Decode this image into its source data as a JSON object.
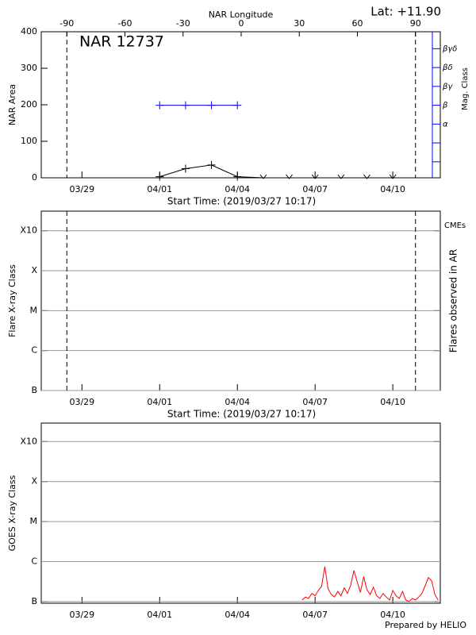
{
  "chart_data": [
    {
      "type": "line",
      "title": "NAR 12737",
      "subtitle": "Lat: +11.90",
      "x2label": "NAR Longitude",
      "xlabel": "Start Time: (2019/03/27 10:17)",
      "ylabel": "NAR Area",
      "y2label": "Mag. Class",
      "y2color": "#0000ff",
      "xlim": [
        "03/27 10:17",
        "04/11 20:00"
      ],
      "xticks": [
        "03/29",
        "04/01",
        "04/04",
        "04/07",
        "04/10"
      ],
      "x2ticks": [
        -90,
        -60,
        -30,
        0,
        30,
        60,
        90
      ],
      "limb_x": [
        "03/28 10:00",
        "04/10 21:00"
      ],
      "ylim": [
        0,
        400
      ],
      "yticks": [
        0,
        100,
        200,
        300,
        400
      ],
      "y2lim": [
        0.15,
        7.9
      ],
      "y2minor": [
        1,
        2
      ],
      "y2ticks": [
        {
          "value": 3,
          "label": "α"
        },
        {
          "value": 4,
          "label": "β"
        },
        {
          "value": 5,
          "label": "βγ"
        },
        {
          "value": 6,
          "label": "βδ"
        },
        {
          "value": 7,
          "label": "βγδ"
        }
      ],
      "series": [
        {
          "color": "#000000",
          "x": [
            "04/01",
            "04/02",
            "04/03",
            "04/04",
            "04/05",
            "04/06",
            "04/07",
            "04/08",
            "04/09",
            "04/10"
          ],
          "values": [
            3,
            25,
            35,
            3,
            0,
            0,
            0,
            0,
            0,
            0
          ]
        },
        {
          "color": "#0000ff",
          "axis": "y2",
          "x": [
            "04/01",
            "04/02",
            "04/03",
            "04/04"
          ],
          "values": [
            4,
            4,
            4,
            4
          ]
        }
      ]
    },
    {
      "type": "line",
      "xlabel": "Start Time: (2019/03/27 10:17)",
      "ylabel": "Flare X-ray Class",
      "y2label": "Flares observed in AR",
      "annotation": "CMEs",
      "annotation_color": "#ff0000",
      "xlim": [
        "03/27 10:17",
        "04/11 20:00"
      ],
      "xticks": [
        "03/29",
        "04/01",
        "04/04",
        "04/07",
        "04/10"
      ],
      "limb_x": [
        "03/28 10:00",
        "04/10 21:00"
      ],
      "log": true,
      "grid": true,
      "ylim": [
        1e-07,
        0.0031
      ],
      "yticks": [
        {
          "value": 1e-07,
          "label": "B"
        },
        {
          "value": 1e-06,
          "label": "C"
        },
        {
          "value": 1e-05,
          "label": "M"
        },
        {
          "value": 0.0001,
          "label": "X"
        },
        {
          "value": 0.001,
          "label": "X10"
        }
      ],
      "series": []
    },
    {
      "type": "line",
      "ylabel": "GOES X-ray Class",
      "xlim": [
        "03/27 10:17",
        "04/11 20:00"
      ],
      "xticks": [
        "03/29",
        "04/01",
        "04/04",
        "04/07",
        "04/10"
      ],
      "log": true,
      "grid": true,
      "ylim": [
        9.1e-08,
        0.0029
      ],
      "yticks": [
        {
          "value": 1e-07,
          "label": "B"
        },
        {
          "value": 1e-06,
          "label": "C"
        },
        {
          "value": 1e-05,
          "label": "M"
        },
        {
          "value": 0.0001,
          "label": "X"
        },
        {
          "value": 0.001,
          "label": "X10"
        }
      ],
      "series": [
        {
          "color": "#ff0000",
          "x": [
            "04/06 12:00",
            "04/06 15:00",
            "04/06 18:00",
            "04/06 21:00",
            "04/07 00:00",
            "04/07 03:00",
            "04/07 06:00",
            "04/07 09:00",
            "04/07 12:00",
            "04/07 15:00",
            "04/07 18:00",
            "04/07 21:00",
            "04/08 00:00",
            "04/08 03:00",
            "04/08 06:00",
            "04/08 09:00",
            "04/08 12:00",
            "04/08 15:00",
            "04/08 18:00",
            "04/08 21:00",
            "04/09 00:00",
            "04/09 03:00",
            "04/09 06:00",
            "04/09 09:00",
            "04/09 12:00",
            "04/09 15:00",
            "04/09 18:00",
            "04/09 21:00",
            "04/10 00:00",
            "04/10 03:00",
            "04/10 06:00",
            "04/10 09:00",
            "04/10 12:00",
            "04/10 15:00",
            "04/10 18:00",
            "04/10 21:00",
            "04/11 00:00",
            "04/11 03:00",
            "04/11 06:00",
            "04/11 09:00",
            "04/11 12:00",
            "04/11 15:00",
            "04/11 18:00"
          ],
          "values": [
            1.1e-07,
            1.3e-07,
            1.2e-07,
            1.6e-07,
            1.4e-07,
            1.9e-07,
            2.4e-07,
            7.5e-07,
            2.1e-07,
            1.5e-07,
            1.3e-07,
            1.8e-07,
            1.4e-07,
            2.2e-07,
            1.6e-07,
            2.6e-07,
            6e-07,
            3.1e-07,
            1.7e-07,
            4.2e-07,
            2e-07,
            1.5e-07,
            2.3e-07,
            1.4e-07,
            1.2e-07,
            1.6e-07,
            1.3e-07,
            1.1e-07,
            1.9e-07,
            1.4e-07,
            1.2e-07,
            1.8e-07,
            1.1e-07,
            1e-07,
            1.2e-07,
            1.1e-07,
            1.3e-07,
            1.6e-07,
            2.5e-07,
            4e-07,
            3.3e-07,
            1.5e-07,
            1.1e-07
          ]
        }
      ]
    }
  ],
  "footer": "Prepared by HELIO"
}
